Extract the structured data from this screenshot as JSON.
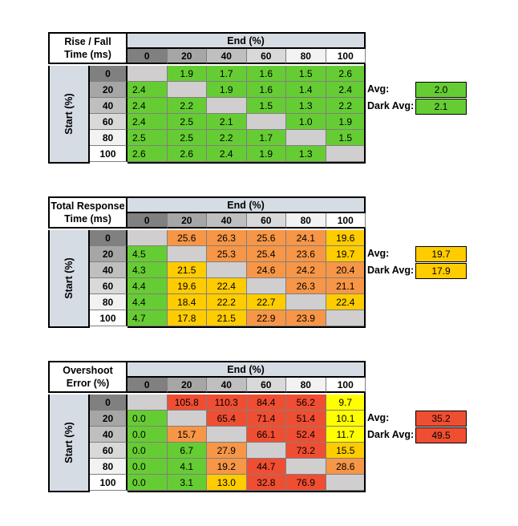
{
  "colors": {
    "header_bg": "#d6dce4",
    "diag_empty": "#d0cece",
    "green": "#66cc33",
    "yellow": "#ffcc00",
    "orange": "#f79646",
    "red": "#f04e32",
    "light_yellow": "#ffff00"
  },
  "chart_data": [
    {
      "type": "table",
      "title_line1": "Rise / Fall",
      "title_line2": "Time (ms)",
      "col_header": "End (%)",
      "row_header": "Start (%)",
      "columns": [
        "0",
        "20",
        "40",
        "60",
        "80",
        "100"
      ],
      "rows": [
        "0",
        "20",
        "40",
        "60",
        "80",
        "100"
      ],
      "values": [
        [
          "",
          "1.9",
          "1.7",
          "1.6",
          "1.5",
          "2.6"
        ],
        [
          "2.4",
          "",
          "1.9",
          "1.6",
          "1.4",
          "2.4"
        ],
        [
          "2.4",
          "2.2",
          "",
          "1.5",
          "1.3",
          "2.2"
        ],
        [
          "2.4",
          "2.5",
          "2.1",
          "",
          "1.0",
          "1.9"
        ],
        [
          "2.5",
          "2.5",
          "2.2",
          "1.7",
          "",
          "1.5"
        ],
        [
          "2.6",
          "2.6",
          "2.4",
          "1.9",
          "1.3",
          ""
        ]
      ],
      "avg_label": "Avg:",
      "avg": "2.0",
      "dark_avg_label": "Dark Avg:",
      "dark_avg": "2.1"
    },
    {
      "type": "table",
      "title_line1": "Total Response",
      "title_line2": "Time (ms)",
      "col_header": "End (%)",
      "row_header": "Start (%)",
      "columns": [
        "0",
        "20",
        "40",
        "60",
        "80",
        "100"
      ],
      "rows": [
        "0",
        "20",
        "40",
        "60",
        "80",
        "100"
      ],
      "values": [
        [
          "",
          "25.6",
          "26.3",
          "25.6",
          "24.1",
          "19.6"
        ],
        [
          "4.5",
          "",
          "25.3",
          "25.4",
          "23.6",
          "19.7"
        ],
        [
          "4.3",
          "21.5",
          "",
          "24.6",
          "24.2",
          "20.4"
        ],
        [
          "4.4",
          "19.6",
          "22.4",
          "",
          "26.3",
          "21.1"
        ],
        [
          "4.4",
          "18.4",
          "22.2",
          "22.7",
          "",
          "22.4"
        ],
        [
          "4.7",
          "17.8",
          "21.5",
          "22.9",
          "23.9",
          ""
        ]
      ],
      "avg_label": "Avg:",
      "avg": "19.7",
      "dark_avg_label": "Dark Avg:",
      "dark_avg": "17.9"
    },
    {
      "type": "table",
      "title_line1": "Overshoot",
      "title_line2": "Error (%)",
      "col_header": "End (%)",
      "row_header": "Start (%)",
      "columns": [
        "0",
        "20",
        "40",
        "60",
        "80",
        "100"
      ],
      "rows": [
        "0",
        "20",
        "40",
        "60",
        "80",
        "100"
      ],
      "values": [
        [
          "",
          "105.8",
          "110.3",
          "84.4",
          "56.2",
          "9.7"
        ],
        [
          "0.0",
          "",
          "65.4",
          "71.4",
          "51.4",
          "10.1"
        ],
        [
          "0.0",
          "15.7",
          "",
          "66.1",
          "52.4",
          "11.7"
        ],
        [
          "0.0",
          "6.7",
          "27.9",
          "",
          "73.2",
          "15.5"
        ],
        [
          "0.0",
          "4.1",
          "19.2",
          "44.7",
          "",
          "28.6"
        ],
        [
          "0.0",
          "3.1",
          "13.0",
          "32.8",
          "76.9",
          ""
        ]
      ],
      "avg_label": "Avg:",
      "avg": "35.2",
      "dark_avg_label": "Dark Avg:",
      "dark_avg": "49.5"
    }
  ],
  "cell_colors": [
    [
      [
        "diag",
        "green",
        "green",
        "green",
        "green",
        "green"
      ],
      [
        "green",
        "diag",
        "green",
        "green",
        "green",
        "green"
      ],
      [
        "green",
        "green",
        "diag",
        "green",
        "green",
        "green"
      ],
      [
        "green",
        "green",
        "green",
        "diag",
        "green",
        "green"
      ],
      [
        "green",
        "green",
        "green",
        "green",
        "diag",
        "green"
      ],
      [
        "green",
        "green",
        "green",
        "green",
        "green",
        "diag"
      ]
    ],
    [
      [
        "diag",
        "orange",
        "orange",
        "orange",
        "orange",
        "yellow"
      ],
      [
        "green",
        "diag",
        "orange",
        "orange",
        "orange",
        "yellow"
      ],
      [
        "green",
        "yellow",
        "diag",
        "orange",
        "orange",
        "orange"
      ],
      [
        "green",
        "yellow",
        "yellow",
        "diag",
        "orange",
        "orange"
      ],
      [
        "green",
        "yellow",
        "yellow",
        "yellow",
        "diag",
        "yellow"
      ],
      [
        "green",
        "yellow",
        "yellow",
        "orange",
        "orange",
        "diag"
      ]
    ],
    [
      [
        "diag",
        "red",
        "red",
        "red",
        "red",
        "light_yellow"
      ],
      [
        "green",
        "diag",
        "red",
        "red",
        "red",
        "light_yellow"
      ],
      [
        "green",
        "orange",
        "diag",
        "red",
        "red",
        "light_yellow"
      ],
      [
        "green",
        "green",
        "orange",
        "diag",
        "red",
        "yellow"
      ],
      [
        "green",
        "green",
        "orange",
        "red",
        "diag",
        "orange"
      ],
      [
        "green",
        "green",
        "yellow",
        "red",
        "red",
        "diag"
      ]
    ]
  ],
  "avg_colors": [
    [
      "green",
      "green"
    ],
    [
      "yellow",
      "yellow"
    ],
    [
      "red",
      "red"
    ]
  ]
}
